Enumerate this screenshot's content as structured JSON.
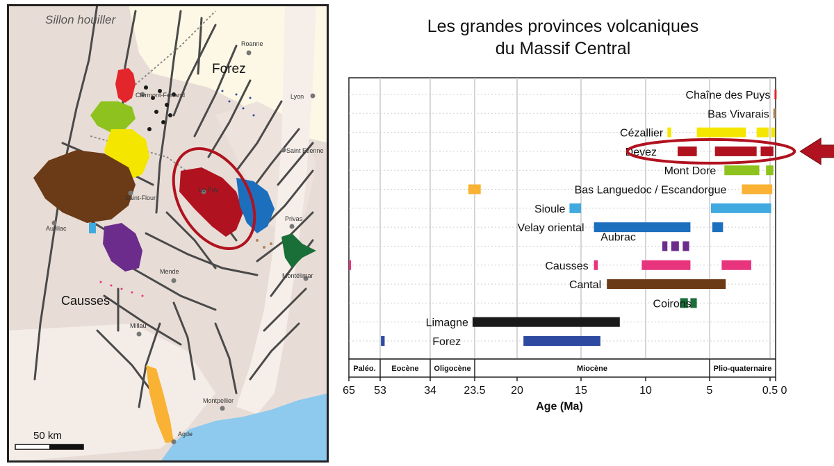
{
  "map": {
    "regions": [
      "Sillon houiller",
      "Forez",
      "Causses"
    ],
    "places": [
      "Roanne",
      "Clermont-Ferrand",
      "Lyon",
      "Saint Etienne",
      "Le Puy",
      "Saint-Flour",
      "Aurillac",
      "Privas",
      "Mende",
      "Montélimar",
      "Millau",
      "Montpellier",
      "Agde"
    ],
    "scale_label": "50 km",
    "colors": {
      "land": "#e8ddd6",
      "plain": "#fdf8e5",
      "sea": "#8ec9ee",
      "faults": "#4a4a4a",
      "highlight": "#b1121f"
    }
  },
  "chart_data": {
    "type": "bar",
    "orientation": "horizontal",
    "title_lines": [
      "Les grandes provinces volcaniques",
      "du Massif Central"
    ],
    "xlabel": "Age (Ma)",
    "x_ticks": [
      "65",
      "53",
      "34",
      "23.5",
      "20",
      "15",
      "10",
      "5",
      "0.5",
      "0"
    ],
    "periods": [
      "Paléo.",
      "Eocène",
      "Oligocène",
      "Miocène",
      "Plio-quaternaire"
    ],
    "highlighted": "Devez",
    "series": [
      {
        "name": "Chaîne des Puys",
        "color": "#e3262b",
        "segments": [
          [
            0.1,
            0
          ]
        ]
      },
      {
        "name": "Bas Vivarais",
        "color": "#b0835a",
        "segments": [
          [
            0.2,
            0
          ]
        ]
      },
      {
        "name": "Cézallier",
        "color": "#f5e600",
        "segments": [
          [
            8.3,
            8.0
          ],
          [
            6.0,
            2.3
          ],
          [
            1.5,
            0.6
          ],
          [
            0.4,
            0.05
          ]
        ]
      },
      {
        "name": "Devez",
        "color": "#b1121f",
        "segments": [
          [
            7.5,
            6.0
          ],
          [
            4.6,
            1.5
          ],
          [
            1.2,
            0.2
          ]
        ]
      },
      {
        "name": "Mont Dore",
        "color": "#8ec21e",
        "segments": [
          [
            3.9,
            1.3
          ],
          [
            0.8,
            0.2
          ]
        ]
      },
      {
        "name": "Bas Languedoc / Escandorgue",
        "color": "#f9b233",
        "segments": [
          [
            25.0,
            23.0
          ],
          [
            2.6,
            0.3
          ]
        ]
      },
      {
        "name": "Sioule",
        "color": "#3fa9e0",
        "segments": [
          [
            15.9,
            15.0
          ],
          [
            4.9,
            0.4
          ]
        ]
      },
      {
        "name": "Velay oriental",
        "color": "#1c6fbd",
        "segments": [
          [
            14.0,
            6.5
          ],
          [
            4.8,
            4.0
          ]
        ]
      },
      {
        "name": "Aubrac",
        "color": "#6c2c8c",
        "segments": [
          [
            8.7,
            8.3
          ],
          [
            8.0,
            7.4
          ],
          [
            7.1,
            6.6
          ]
        ]
      },
      {
        "name": "Causses",
        "color": "#e8337d",
        "segments": [
          [
            65,
            64.2
          ],
          [
            14.0,
            13.7
          ],
          [
            10.3,
            6.5
          ],
          [
            4.1,
            1.9
          ]
        ]
      },
      {
        "name": "Cantal",
        "color": "#6b3a16",
        "segments": [
          [
            13.0,
            3.8
          ]
        ]
      },
      {
        "name": "Coirons",
        "color": "#1a6e38",
        "segments": [
          [
            7.3,
            6.7
          ],
          [
            6.5,
            6.0
          ]
        ]
      },
      {
        "name": "Limagne",
        "color": "#1a1a1a",
        "segments": [
          [
            24.0,
            12.0
          ]
        ]
      },
      {
        "name": "Forez",
        "color": "#2d4aa0",
        "segments": [
          [
            52.7,
            51.3
          ],
          [
            19.5,
            13.5
          ]
        ]
      }
    ]
  }
}
